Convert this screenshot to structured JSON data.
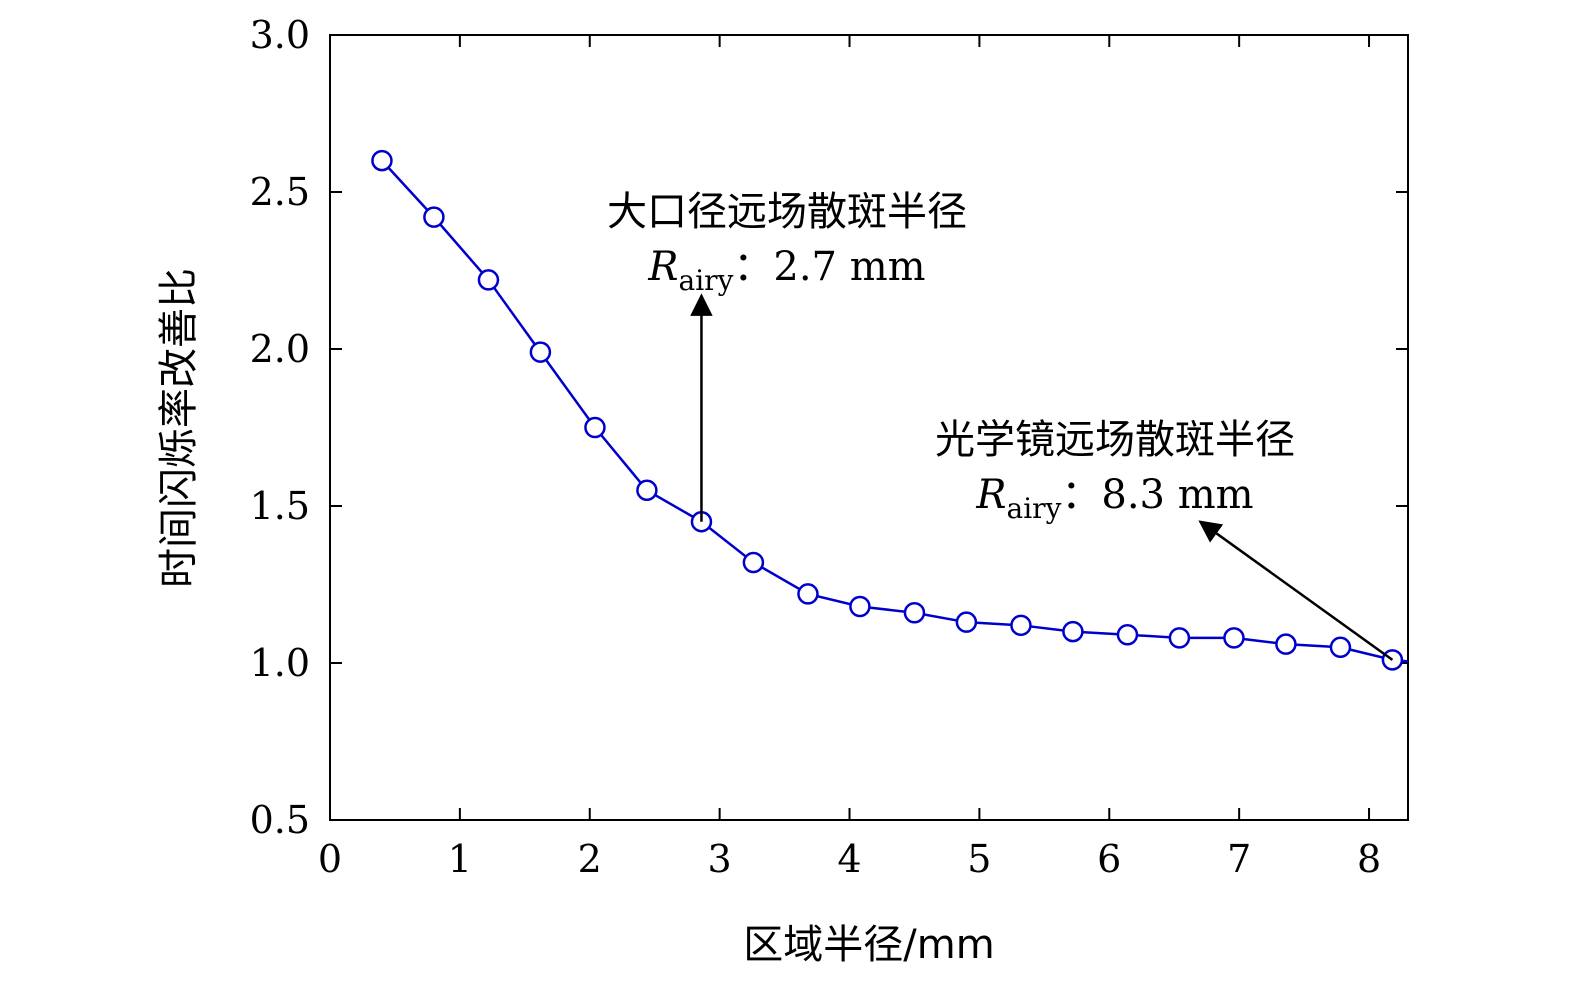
{
  "chart_data": {
    "type": "line",
    "title": "",
    "xlabel": "区域半径/mm",
    "ylabel": "时间闪烁率改善比",
    "xlim": [
      0,
      8.3
    ],
    "ylim": [
      0.5,
      3.0
    ],
    "xticks": [
      0,
      1,
      2,
      3,
      4,
      5,
      6,
      7,
      8
    ],
    "xtick_labels": [
      "0",
      "1",
      "2",
      "3",
      "4",
      "5",
      "6",
      "7",
      "8"
    ],
    "yticks": [
      0.5,
      1.0,
      1.5,
      2.0,
      2.5,
      3.0
    ],
    "ytick_labels": [
      "0.5",
      "1.0",
      "1.5",
      "2.0",
      "2.5",
      "3.0"
    ],
    "grid": false,
    "line_color": "#0000cc",
    "marker": "circle-open",
    "series": [
      {
        "x": [
          0.4,
          0.8,
          1.22,
          1.62,
          2.04,
          2.44,
          2.86,
          3.26,
          3.68,
          4.08,
          4.5,
          4.9,
          5.32,
          5.72,
          6.14,
          6.54,
          6.96,
          7.36,
          7.78,
          8.18
        ],
        "values": [
          2.6,
          2.42,
          2.22,
          1.99,
          1.75,
          1.55,
          1.45,
          1.32,
          1.22,
          1.18,
          1.16,
          1.13,
          1.12,
          1.1,
          1.09,
          1.08,
          1.08,
          1.06,
          1.05,
          1.01
        ],
        "tail": {
          "x": 8.3,
          "y": 1.005
        }
      }
    ],
    "annotations": [
      {
        "line1": "大口径远场散斑半径",
        "r_symbol": "R",
        "r_subscript": "airy",
        "r_value": "：2.7 mm",
        "arrow_from": {
          "x": 2.86,
          "y": 1.45
        },
        "arrow_to": {
          "x": 2.86,
          "y": 2.17
        }
      },
      {
        "line1": "光学镜远场散斑半径",
        "r_symbol": "R",
        "r_subscript": "airy",
        "r_value": "：8.3 mm",
        "arrow_from": {
          "x": 8.18,
          "y": 1.01
        },
        "arrow_to": {
          "x": 6.7,
          "y": 1.45
        }
      }
    ]
  }
}
